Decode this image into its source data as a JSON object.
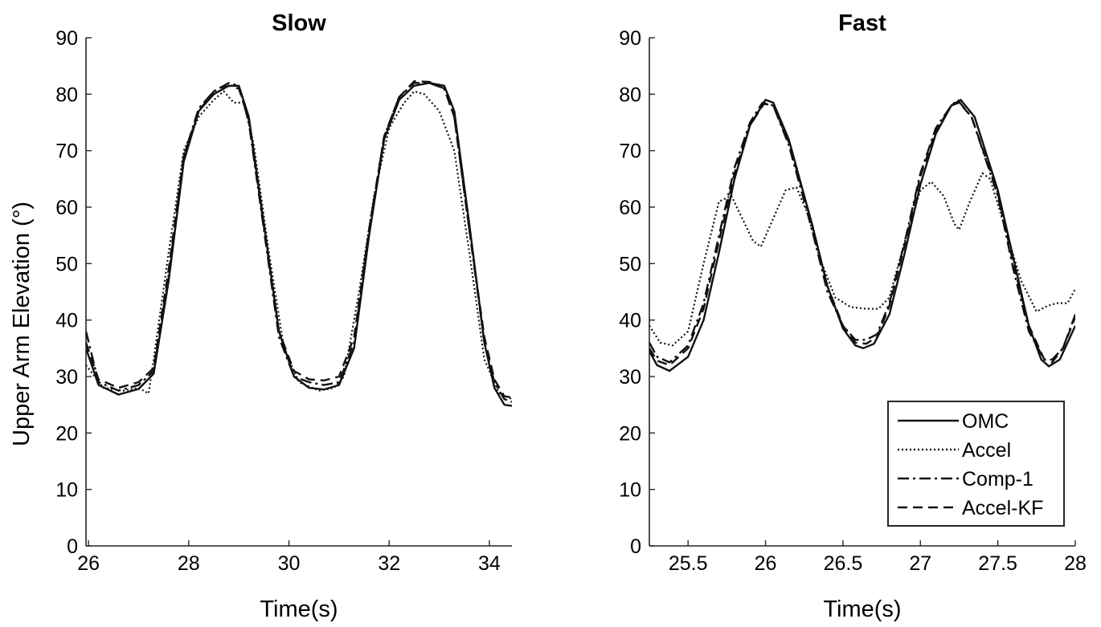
{
  "chart_data": [
    {
      "type": "line",
      "title": "Slow",
      "xlabel": "Time(s)",
      "ylabel": "Upper Arm Elevation (°)",
      "xlim": [
        25.95,
        34.45
      ],
      "ylim": [
        0,
        90
      ],
      "xticks": [
        26,
        28,
        30,
        32,
        34
      ],
      "xtick_labels": [
        "26",
        "28",
        "30",
        "32",
        "34"
      ],
      "yticks": [
        0,
        10,
        20,
        30,
        40,
        50,
        60,
        70,
        80,
        90
      ],
      "ytick_labels": [
        "0",
        "10",
        "20",
        "30",
        "40",
        "50",
        "60",
        "70",
        "80",
        "90"
      ],
      "grid": false,
      "series": [
        {
          "name": "OMC",
          "dash": "solid",
          "points": [
            [
              25.95,
              35
            ],
            [
              26.2,
              28.5
            ],
            [
              26.6,
              26.8
            ],
            [
              27.0,
              27.8
            ],
            [
              27.3,
              30.5
            ],
            [
              27.6,
              47
            ],
            [
              27.9,
              68
            ],
            [
              28.2,
              77
            ],
            [
              28.5,
              80
            ],
            [
              28.8,
              81.5
            ],
            [
              29.0,
              81.5
            ],
            [
              29.2,
              76
            ],
            [
              29.5,
              57
            ],
            [
              29.8,
              38
            ],
            [
              30.1,
              30
            ],
            [
              30.4,
              28
            ],
            [
              30.7,
              27.7
            ],
            [
              31.0,
              28.5
            ],
            [
              31.3,
              35
            ],
            [
              31.6,
              55
            ],
            [
              31.9,
              72
            ],
            [
              32.2,
              79
            ],
            [
              32.5,
              81.5
            ],
            [
              32.8,
              82
            ],
            [
              33.1,
              81.5
            ],
            [
              33.3,
              77
            ],
            [
              33.6,
              57
            ],
            [
              33.9,
              36
            ],
            [
              34.1,
              28
            ],
            [
              34.3,
              25
            ],
            [
              34.45,
              24.8
            ]
          ]
        },
        {
          "name": "Accel",
          "dash": "dotted",
          "points": [
            [
              25.95,
              32
            ],
            [
              26.3,
              28
            ],
            [
              26.7,
              27.5
            ],
            [
              27.0,
              28
            ],
            [
              27.2,
              27
            ],
            [
              27.3,
              33
            ],
            [
              27.6,
              52
            ],
            [
              27.9,
              70
            ],
            [
              28.2,
              76
            ],
            [
              28.5,
              79
            ],
            [
              28.7,
              80.5
            ],
            [
              28.9,
              78.5
            ],
            [
              29.1,
              78.5
            ],
            [
              29.3,
              71
            ],
            [
              29.6,
              52
            ],
            [
              29.9,
              35
            ],
            [
              30.2,
              29
            ],
            [
              30.6,
              27.5
            ],
            [
              30.9,
              28
            ],
            [
              31.1,
              30
            ],
            [
              31.4,
              45
            ],
            [
              31.7,
              62
            ],
            [
              32.0,
              74
            ],
            [
              32.3,
              78.5
            ],
            [
              32.5,
              80.5
            ],
            [
              32.7,
              80
            ],
            [
              33.0,
              77
            ],
            [
              33.3,
              70
            ],
            [
              33.6,
              52
            ],
            [
              33.9,
              33
            ],
            [
              34.2,
              27
            ],
            [
              34.45,
              26
            ]
          ]
        },
        {
          "name": "Comp-1",
          "dash": "dashdot",
          "points": [
            [
              25.95,
              38
            ],
            [
              26.2,
              29
            ],
            [
              26.6,
              27.5
            ],
            [
              27.0,
              28.5
            ],
            [
              27.3,
              31
            ],
            [
              27.6,
              48
            ],
            [
              27.9,
              69
            ],
            [
              28.2,
              77.5
            ],
            [
              28.5,
              80.5
            ],
            [
              28.8,
              82
            ],
            [
              29.0,
              81.5
            ],
            [
              29.2,
              75
            ],
            [
              29.5,
              56
            ],
            [
              29.8,
              37
            ],
            [
              30.1,
              30
            ],
            [
              30.4,
              29
            ],
            [
              30.7,
              28.5
            ],
            [
              31.0,
              29
            ],
            [
              31.3,
              36
            ],
            [
              31.6,
              56
            ],
            [
              31.9,
              72.5
            ],
            [
              32.2,
              79.5
            ],
            [
              32.5,
              82
            ],
            [
              32.8,
              82
            ],
            [
              33.1,
              81
            ],
            [
              33.3,
              76
            ],
            [
              33.6,
              56
            ],
            [
              33.9,
              36
            ],
            [
              34.1,
              29
            ],
            [
              34.3,
              26
            ],
            [
              34.45,
              25.5
            ]
          ]
        },
        {
          "name": "Accel-KF",
          "dash": "dashed",
          "points": [
            [
              25.95,
              36
            ],
            [
              26.2,
              29.5
            ],
            [
              26.6,
              28
            ],
            [
              27.0,
              29
            ],
            [
              27.3,
              31.5
            ],
            [
              27.6,
              49
            ],
            [
              27.9,
              69
            ],
            [
              28.2,
              77
            ],
            [
              28.5,
              80.5
            ],
            [
              28.8,
              81.5
            ],
            [
              29.0,
              81
            ],
            [
              29.2,
              75.5
            ],
            [
              29.5,
              56.5
            ],
            [
              29.8,
              38
            ],
            [
              30.1,
              31
            ],
            [
              30.4,
              29.5
            ],
            [
              30.7,
              29.3
            ],
            [
              31.0,
              30
            ],
            [
              31.3,
              37
            ],
            [
              31.6,
              56
            ],
            [
              31.9,
              72.5
            ],
            [
              32.2,
              79.5
            ],
            [
              32.5,
              82.3
            ],
            [
              32.8,
              82.2
            ],
            [
              33.1,
              81
            ],
            [
              33.3,
              76
            ],
            [
              33.6,
              56
            ],
            [
              33.9,
              37
            ],
            [
              34.1,
              29.5
            ],
            [
              34.3,
              26.5
            ],
            [
              34.45,
              26.3
            ]
          ]
        }
      ]
    },
    {
      "type": "line",
      "title": "Fast",
      "xlabel": "Time(s)",
      "ylabel": "",
      "xlim": [
        25.25,
        28.0
      ],
      "ylim": [
        0,
        90
      ],
      "xticks": [
        25.5,
        26,
        26.5,
        27,
        27.5,
        28
      ],
      "xtick_labels": [
        "25.5",
        "26",
        "26.5",
        "27",
        "27.5",
        "28"
      ],
      "yticks": [
        0,
        10,
        20,
        30,
        40,
        50,
        60,
        70,
        80,
        90
      ],
      "ytick_labels": [
        "0",
        "10",
        "20",
        "30",
        "40",
        "50",
        "60",
        "70",
        "80",
        "90"
      ],
      "grid": false,
      "legend": {
        "position": "bottom-right",
        "entries": [
          "OMC",
          "Accel",
          "Comp-1",
          "Accel-KF"
        ]
      },
      "series": [
        {
          "name": "OMC",
          "dash": "solid",
          "points": [
            [
              25.25,
              34.5
            ],
            [
              25.3,
              32
            ],
            [
              25.38,
              31
            ],
            [
              25.5,
              33.5
            ],
            [
              25.6,
              40
            ],
            [
              25.7,
              52
            ],
            [
              25.8,
              65
            ],
            [
              25.9,
              74.5
            ],
            [
              26.0,
              79
            ],
            [
              26.05,
              78.5
            ],
            [
              26.15,
              72
            ],
            [
              26.3,
              57
            ],
            [
              26.4,
              46
            ],
            [
              26.5,
              38.5
            ],
            [
              26.58,
              35.5
            ],
            [
              26.63,
              35
            ],
            [
              26.7,
              35.8
            ],
            [
              26.8,
              41
            ],
            [
              26.9,
              52
            ],
            [
              27.0,
              64
            ],
            [
              27.1,
              73
            ],
            [
              27.2,
              78
            ],
            [
              27.26,
              79
            ],
            [
              27.35,
              76
            ],
            [
              27.5,
              63
            ],
            [
              27.6,
              51
            ],
            [
              27.7,
              39
            ],
            [
              27.78,
              33
            ],
            [
              27.83,
              31.8
            ],
            [
              27.9,
              33
            ],
            [
              28.0,
              39
            ]
          ]
        },
        {
          "name": "Accel",
          "dash": "dotted",
          "points": [
            [
              25.25,
              39
            ],
            [
              25.32,
              36
            ],
            [
              25.4,
              35.5
            ],
            [
              25.5,
              38
            ],
            [
              25.6,
              50
            ],
            [
              25.7,
              61
            ],
            [
              25.78,
              62
            ],
            [
              25.85,
              58
            ],
            [
              25.92,
              54
            ],
            [
              25.97,
              53
            ],
            [
              26.05,
              58
            ],
            [
              26.13,
              63
            ],
            [
              26.2,
              63.5
            ],
            [
              26.27,
              59
            ],
            [
              26.35,
              51
            ],
            [
              26.45,
              44
            ],
            [
              26.55,
              42.3
            ],
            [
              26.65,
              42
            ],
            [
              26.73,
              42
            ],
            [
              26.8,
              44
            ],
            [
              26.9,
              54
            ],
            [
              27.0,
              63
            ],
            [
              27.07,
              64.5
            ],
            [
              27.15,
              62
            ],
            [
              27.22,
              57
            ],
            [
              27.25,
              56
            ],
            [
              27.32,
              61
            ],
            [
              27.4,
              66
            ],
            [
              27.45,
              65
            ],
            [
              27.55,
              56
            ],
            [
              27.65,
              47
            ],
            [
              27.75,
              41.5
            ],
            [
              27.82,
              42.5
            ],
            [
              27.88,
              43
            ],
            [
              27.95,
              43
            ],
            [
              28.0,
              45.5
            ]
          ]
        },
        {
          "name": "Comp-1",
          "dash": "dashdot",
          "points": [
            [
              25.25,
              36
            ],
            [
              25.3,
              33.5
            ],
            [
              25.38,
              32.5
            ],
            [
              25.5,
              35.5
            ],
            [
              25.6,
              43
            ],
            [
              25.7,
              55
            ],
            [
              25.8,
              67
            ],
            [
              25.9,
              75
            ],
            [
              25.98,
              78.5
            ],
            [
              26.05,
              78
            ],
            [
              26.15,
              71
            ],
            [
              26.3,
              56
            ],
            [
              26.4,
              45
            ],
            [
              26.5,
              39
            ],
            [
              26.58,
              36.5
            ],
            [
              26.65,
              36.5
            ],
            [
              26.72,
              37.5
            ],
            [
              26.8,
              43
            ],
            [
              26.9,
              54
            ],
            [
              27.0,
              66
            ],
            [
              27.1,
              74
            ],
            [
              27.2,
              78
            ],
            [
              27.24,
              79
            ],
            [
              27.33,
              76
            ],
            [
              27.5,
              62
            ],
            [
              27.6,
              49
            ],
            [
              27.7,
              38
            ],
            [
              27.8,
              33
            ],
            [
              27.85,
              33
            ],
            [
              27.92,
              35
            ],
            [
              28.0,
              41
            ]
          ]
        },
        {
          "name": "Accel-KF",
          "dash": "dashed",
          "points": [
            [
              25.25,
              35
            ],
            [
              25.3,
              32.8
            ],
            [
              25.38,
              32
            ],
            [
              25.5,
              35
            ],
            [
              25.6,
              42
            ],
            [
              25.7,
              54
            ],
            [
              25.8,
              66
            ],
            [
              25.9,
              74.5
            ],
            [
              25.99,
              78.3
            ],
            [
              26.05,
              78
            ],
            [
              26.15,
              71.5
            ],
            [
              26.3,
              57
            ],
            [
              26.4,
              46
            ],
            [
              26.5,
              39
            ],
            [
              26.58,
              36
            ],
            [
              26.65,
              35.8
            ],
            [
              26.72,
              37
            ],
            [
              26.8,
              42.5
            ],
            [
              26.9,
              53.5
            ],
            [
              27.0,
              65.5
            ],
            [
              27.1,
              73.5
            ],
            [
              27.2,
              78
            ],
            [
              27.25,
              78.5
            ],
            [
              27.33,
              76
            ],
            [
              27.5,
              62.5
            ],
            [
              27.6,
              50
            ],
            [
              27.7,
              39
            ],
            [
              27.8,
              33
            ],
            [
              27.85,
              32.5
            ],
            [
              27.92,
              35
            ],
            [
              28.0,
              40.5
            ]
          ]
        }
      ]
    }
  ]
}
